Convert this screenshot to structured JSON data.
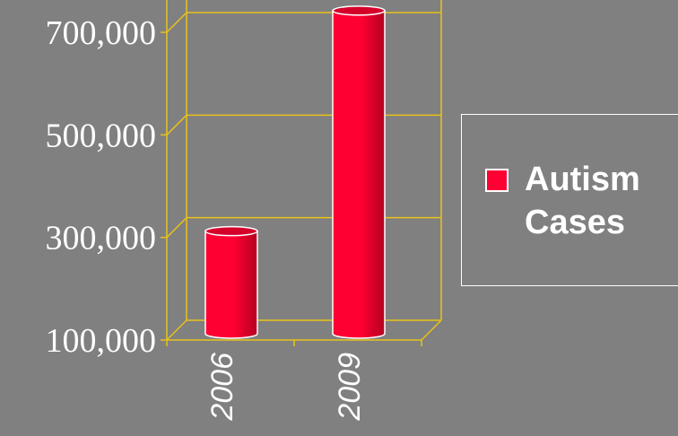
{
  "chart_data": {
    "type": "bar",
    "categories": [
      "2006",
      "2009"
    ],
    "series": [
      {
        "name": "Autism Cases",
        "values": [
          300000,
          730000
        ]
      }
    ],
    "yticks": [
      100000,
      300000,
      500000,
      700000
    ],
    "ytick_labels": [
      "100,000",
      "300,000",
      "500,000",
      "700,000"
    ],
    "ylim": [
      100000,
      760000
    ],
    "grid": true,
    "legend": "right",
    "colors": {
      "bar": "#ff0033",
      "bar_dark": "#b3001f",
      "bar_top": "#d4002a",
      "grid": "#e8c21a",
      "background": "#808080",
      "text": "#ffffff"
    }
  }
}
